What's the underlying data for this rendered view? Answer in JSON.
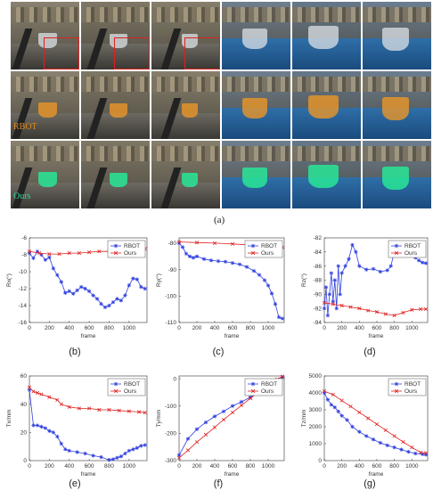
{
  "photo_panel": {
    "caption": "(a)",
    "row_labels": [
      "",
      "RBOT",
      "Ours"
    ],
    "frame_labels": [
      "",
      "",
      "",
      "",
      "",
      ""
    ]
  },
  "chart_data": [
    {
      "id": "b",
      "type": "line",
      "caption": "(b)",
      "xlabel": "frame",
      "ylabel": "Rx(°)",
      "xlim": [
        0,
        1180
      ],
      "ylim": [
        -16,
        -6
      ],
      "xticks": [
        0,
        200,
        400,
        600,
        800,
        1000
      ],
      "yticks": [
        -6,
        -8,
        -10,
        -12,
        -14,
        -16
      ],
      "legend": "top-right",
      "grid": false,
      "series": [
        {
          "name": "RBOT",
          "color": "#3040e0",
          "marker": "star",
          "x": [
            0,
            40,
            80,
            120,
            160,
            200,
            240,
            280,
            320,
            360,
            400,
            440,
            480,
            520,
            560,
            600,
            640,
            680,
            720,
            760,
            800,
            840,
            880,
            920,
            960,
            1000,
            1040,
            1080,
            1120,
            1160
          ],
          "y": [
            -7.8,
            -8.4,
            -7.6,
            -8.0,
            -8.6,
            -8.3,
            -9.6,
            -10.4,
            -11.2,
            -12.5,
            -12.3,
            -12.6,
            -12.2,
            -11.8,
            -12.0,
            -12.3,
            -12.8,
            -13.2,
            -13.8,
            -14.2,
            -14.0,
            -13.6,
            -13.2,
            -13.4,
            -12.8,
            -11.6,
            -10.8,
            -10.9,
            -11.8,
            -12.0
          ]
        },
        {
          "name": "Ours",
          "color": "#e02020",
          "marker": "x",
          "x": [
            0,
            100,
            200,
            300,
            400,
            500,
            600,
            700,
            800,
            900,
            1000,
            1100,
            1160
          ],
          "y": [
            -7.6,
            -7.8,
            -7.9,
            -7.9,
            -7.8,
            -7.8,
            -7.7,
            -7.6,
            -7.6,
            -7.5,
            -7.4,
            -7.3,
            -7.3
          ]
        }
      ]
    },
    {
      "id": "c",
      "type": "line",
      "caption": "(c)",
      "xlabel": "frame",
      "ylabel": "Ry(°)",
      "xlim": [
        0,
        1180
      ],
      "ylim": [
        -110,
        -78
      ],
      "xticks": [
        0,
        200,
        400,
        600,
        800,
        1000
      ],
      "yticks": [
        -80,
        -90,
        -100,
        -110
      ],
      "legend": "top-right",
      "grid": false,
      "series": [
        {
          "name": "RBOT",
          "color": "#3040e0",
          "marker": "star",
          "x": [
            0,
            40,
            80,
            120,
            160,
            200,
            280,
            360,
            440,
            520,
            600,
            680,
            760,
            840,
            900,
            960,
            1000,
            1040,
            1080,
            1120,
            1160
          ],
          "y": [
            -80,
            -81.5,
            -84,
            -85,
            -85.5,
            -85,
            -86,
            -86.5,
            -86.8,
            -87,
            -87.5,
            -88,
            -89,
            -90.5,
            -92,
            -94,
            -96,
            -99,
            -103,
            -108,
            -108.5
          ]
        },
        {
          "name": "Ours",
          "color": "#e02020",
          "marker": "x",
          "x": [
            0,
            200,
            400,
            600,
            800,
            1000,
            1160
          ],
          "y": [
            -79.5,
            -79.8,
            -80,
            -80.3,
            -80.7,
            -81.2,
            -81.6
          ]
        }
      ]
    },
    {
      "id": "d",
      "type": "line",
      "caption": "(d)",
      "xlabel": "frame",
      "ylabel": "Rz(°)",
      "xlim": [
        0,
        1180
      ],
      "ylim": [
        -94,
        -82
      ],
      "xticks": [
        0,
        200,
        400,
        600,
        800,
        1000
      ],
      "yticks": [
        -82,
        -84,
        -86,
        -88,
        -90,
        -92,
        -94
      ],
      "legend": "top-right",
      "grid": false,
      "series": [
        {
          "name": "RBOT",
          "color": "#3040e0",
          "marker": "star",
          "x": [
            0,
            20,
            40,
            60,
            80,
            100,
            120,
            140,
            160,
            180,
            200,
            240,
            280,
            320,
            360,
            400,
            480,
            560,
            640,
            720,
            760,
            800,
            840,
            880,
            920,
            960,
            1000,
            1040,
            1080,
            1120,
            1160
          ],
          "y": [
            -92,
            -89,
            -93,
            -90,
            -87,
            -91,
            -88,
            -92,
            -86,
            -90,
            -87,
            -86,
            -85,
            -83,
            -84,
            -86,
            -86.5,
            -86.4,
            -86.8,
            -86.6,
            -86,
            -84,
            -83.6,
            -84.2,
            -84,
            -84.2,
            -84.5,
            -84.8,
            -85.2,
            -85.5,
            -85.6
          ]
        },
        {
          "name": "Ours",
          "color": "#e02020",
          "marker": "x",
          "x": [
            0,
            100,
            200,
            300,
            400,
            500,
            600,
            700,
            800,
            900,
            1000,
            1100,
            1160
          ],
          "y": [
            -91.2,
            -91.4,
            -91.6,
            -91.8,
            -92,
            -92.3,
            -92.5,
            -92.8,
            -93,
            -92.6,
            -92.2,
            -92.1,
            -92.1
          ]
        }
      ]
    },
    {
      "id": "e",
      "type": "line",
      "caption": "(e)",
      "xlabel": "frame",
      "ylabel": "Tx/mm",
      "xlim": [
        0,
        1180
      ],
      "ylim": [
        0,
        60
      ],
      "xticks": [
        0,
        200,
        400,
        600,
        800,
        1000
      ],
      "yticks": [
        0,
        20,
        40,
        60
      ],
      "legend": "top-right",
      "grid": false,
      "series": [
        {
          "name": "RBOT",
          "color": "#3040e0",
          "marker": "star",
          "x": [
            0,
            40,
            80,
            120,
            160,
            200,
            240,
            280,
            320,
            360,
            400,
            480,
            560,
            640,
            720,
            800,
            840,
            880,
            920,
            960,
            1000,
            1040,
            1080,
            1120,
            1160
          ],
          "y": [
            50,
            25,
            25,
            24,
            23,
            21,
            20,
            17,
            12,
            8,
            7,
            6,
            5,
            3.5,
            2.5,
            0.5,
            1,
            2,
            3,
            5,
            7,
            8,
            9,
            10.5,
            11
          ]
        },
        {
          "name": "Ours",
          "color": "#e02020",
          "marker": "x",
          "x": [
            0,
            40,
            80,
            120,
            200,
            280,
            320,
            400,
            500,
            600,
            700,
            800,
            900,
            1000,
            1100,
            1160
          ],
          "y": [
            52,
            49,
            48,
            47,
            45,
            43,
            40,
            38,
            37,
            37,
            36,
            36,
            35.5,
            35,
            34.5,
            34
          ]
        }
      ]
    },
    {
      "id": "f",
      "type": "line",
      "caption": "(f)",
      "xlabel": "frame",
      "ylabel": "Ty/mm",
      "xlim": [
        0,
        1180
      ],
      "ylim": [
        -300,
        10
      ],
      "xticks": [
        0,
        200,
        400,
        600,
        800,
        1000
      ],
      "yticks": [
        0,
        -100,
        -200,
        -300
      ],
      "legend": "top-right",
      "grid": false,
      "series": [
        {
          "name": "RBOT",
          "color": "#3040e0",
          "marker": "star",
          "x": [
            0,
            100,
            200,
            300,
            400,
            500,
            600,
            700,
            800,
            900,
            1000,
            1100,
            1160
          ],
          "y": [
            -280,
            -220,
            -185,
            -160,
            -138,
            -120,
            -100,
            -85,
            -68,
            -50,
            -32,
            -10,
            5
          ]
        },
        {
          "name": "Ours",
          "color": "#e02020",
          "marker": "x",
          "x": [
            0,
            100,
            200,
            300,
            400,
            500,
            600,
            700,
            800,
            900,
            1000,
            1100,
            1160
          ],
          "y": [
            -290,
            -262,
            -232,
            -205,
            -178,
            -150,
            -124,
            -98,
            -72,
            -48,
            -24,
            -2,
            8
          ]
        }
      ]
    },
    {
      "id": "g",
      "type": "line",
      "caption": "(g)",
      "xlabel": "frame",
      "ylabel": "Tz/mm",
      "xlim": [
        0,
        1180
      ],
      "ylim": [
        0,
        5000
      ],
      "xticks": [
        0,
        200,
        400,
        600,
        800,
        1000
      ],
      "yticks": [
        0,
        1000,
        2000,
        3000,
        4000,
        5000
      ],
      "legend": "top-right",
      "grid": false,
      "series": [
        {
          "name": "RBOT",
          "color": "#3040e0",
          "marker": "star",
          "x": [
            0,
            40,
            80,
            120,
            160,
            200,
            260,
            320,
            400,
            480,
            560,
            640,
            720,
            800,
            880,
            960,
            1040,
            1120,
            1160
          ],
          "y": [
            4000,
            3600,
            3300,
            3150,
            2900,
            2650,
            2400,
            2000,
            1700,
            1450,
            1250,
            1050,
            900,
            780,
            650,
            520,
            420,
            380,
            350
          ]
        },
        {
          "name": "Ours",
          "color": "#e02020",
          "marker": "x",
          "x": [
            0,
            100,
            200,
            300,
            400,
            500,
            600,
            700,
            800,
            900,
            1000,
            1100,
            1160
          ],
          "y": [
            4100,
            3900,
            3550,
            3200,
            2850,
            2500,
            2150,
            1800,
            1450,
            1100,
            780,
            480,
            450
          ]
        }
      ]
    }
  ]
}
